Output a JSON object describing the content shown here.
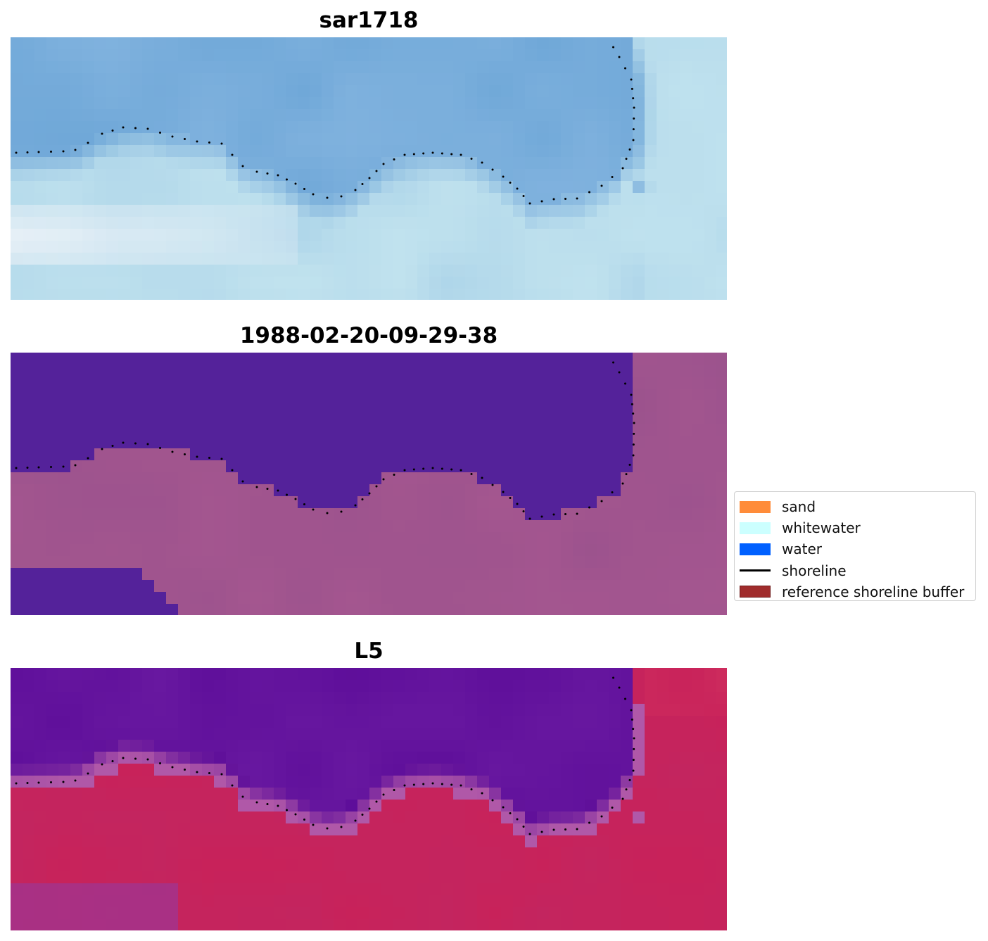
{
  "panels": [
    {
      "title": "sar1718",
      "style": "sar"
    },
    {
      "title": "1988-02-20-09-29-38",
      "style": "classified"
    },
    {
      "title": "L5",
      "style": "index"
    }
  ],
  "legend": {
    "items": [
      {
        "label": "sand",
        "color": "#ff8c3a",
        "kind": "patch"
      },
      {
        "label": "whitewater",
        "color": "#ccffff",
        "kind": "patch"
      },
      {
        "label": "water",
        "color": "#0060ff",
        "kind": "patch"
      },
      {
        "label": "shoreline",
        "color": "#000000",
        "kind": "line"
      },
      {
        "label": "reference shoreline buffer",
        "color": "#a02c2c",
        "kind": "patch"
      }
    ]
  },
  "colors": {
    "sar_base": "#7fb0d8",
    "water_class": "#54229a",
    "land_class": "#a2558f",
    "index_water": "#5c0c9a",
    "index_land": "#c8225a"
  }
}
